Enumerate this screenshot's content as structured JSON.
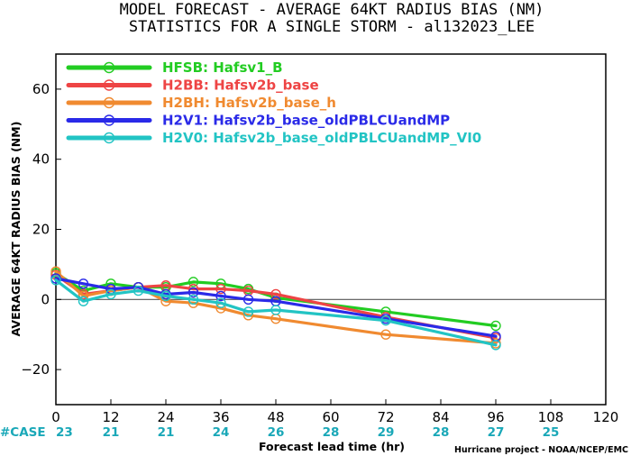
{
  "titles": {
    "line1": "MODEL FORECAST - AVERAGE 64KT RADIUS BIAS (NM)",
    "line2": "STATISTICS FOR A SINGLE STORM - al132023_LEE"
  },
  "credit": "Hurricane project - NOAA/NCEP/EMC",
  "case_label": "#CASE",
  "chart_data": {
    "type": "line",
    "xlabel": "Forecast lead time (hr)",
    "ylabel": "AVERAGE 64KT RADIUS BIAS (NM)",
    "xlim": [
      0,
      120
    ],
    "ylim": [
      -30,
      70
    ],
    "x_ticks": [
      0,
      12,
      24,
      36,
      48,
      60,
      72,
      84,
      96,
      108,
      120
    ],
    "y_ticks": [
      -20,
      0,
      20,
      40,
      60
    ],
    "y_tick_labels": [
      "−20",
      "0",
      "20",
      "40",
      "60"
    ],
    "x": [
      0,
      6,
      12,
      18,
      24,
      30,
      36,
      42,
      48,
      72,
      96
    ],
    "case_counts": {
      "x": [
        0,
        12,
        24,
        36,
        48,
        60,
        72,
        84,
        96,
        108
      ],
      "values": [
        "23",
        "21",
        "21",
        "24",
        "26",
        "28",
        "29",
        "28",
        "27",
        "25"
      ]
    },
    "reference_line": 0,
    "legend_position": "top-left",
    "series": [
      {
        "name": "HFSB: Hafsv1_B",
        "color": "#22cc22",
        "values": [
          7.5,
          2.5,
          4.5,
          3.5,
          3.5,
          5.0,
          4.5,
          3.0,
          0.5,
          -3.5,
          -7.5
        ]
      },
      {
        "name": "H2BB: Hafsv2b_base",
        "color": "#ee4444",
        "values": [
          7.0,
          1.5,
          2.5,
          3.5,
          4.0,
          3.0,
          3.0,
          2.5,
          1.5,
          -5.0,
          -11.0
        ]
      },
      {
        "name": "H2BH: Hafsv2b_base_h",
        "color": "#f08a30",
        "values": [
          8.0,
          1.0,
          2.5,
          3.5,
          -0.5,
          -1.0,
          -2.5,
          -4.5,
          -5.5,
          -10.0,
          -12.5
        ]
      },
      {
        "name": "H2V1: Hafsv2b_base_oldPBLCUandMP",
        "color": "#2a2ae8",
        "values": [
          6.0,
          4.5,
          3.0,
          3.5,
          1.5,
          2.0,
          1.0,
          0.0,
          -0.5,
          -5.5,
          -10.5
        ]
      },
      {
        "name": "H2V0: Hafsv2b_base_oldPBLCUandMP_VI0",
        "color": "#22c4c4",
        "values": [
          5.5,
          -0.5,
          1.5,
          2.5,
          1.0,
          0.0,
          -1.0,
          -3.5,
          -3.0,
          -6.0,
          -13.0
        ]
      }
    ]
  }
}
